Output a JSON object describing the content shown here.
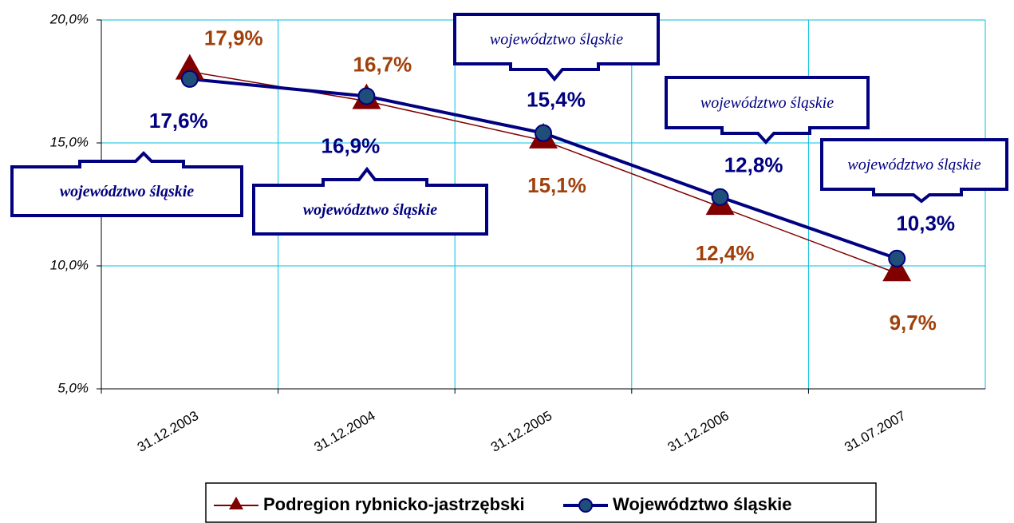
{
  "chart_data": {
    "type": "line",
    "categories": [
      "31.12.2003",
      "31.12.2004",
      "31.12.2005",
      "31.12.2006",
      "31.07.2007"
    ],
    "series": [
      {
        "name": "Podregion rybnicko-jastrzębski",
        "color": "#800000",
        "marker": "triangle",
        "values": [
          17.9,
          16.7,
          15.1,
          12.4,
          9.7
        ],
        "value_labels": [
          "17,9%",
          "16,7%",
          "15,1%",
          "12,4%",
          "9,7%"
        ]
      },
      {
        "name": "Województwo śląskie",
        "color": "#000080",
        "marker": "circle",
        "values": [
          17.6,
          16.9,
          15.4,
          12.8,
          10.3
        ],
        "value_labels": [
          "17,6%",
          "16,9%",
          "15,4%",
          "12,8%",
          "10,3%"
        ]
      }
    ],
    "ylim": [
      5,
      20
    ],
    "yticks": [
      {
        "value": 5,
        "label": "5,0%"
      },
      {
        "value": 10,
        "label": "10,0%"
      },
      {
        "value": 15,
        "label": "15,0%"
      },
      {
        "value": 20,
        "label": "20,0%"
      }
    ],
    "grid": true,
    "legend": "bottom",
    "annotations": [
      "województwo śląskie",
      "województwo śląskie",
      "województwo śląskie",
      "województwo śląskie",
      "województwo śląskie"
    ]
  }
}
